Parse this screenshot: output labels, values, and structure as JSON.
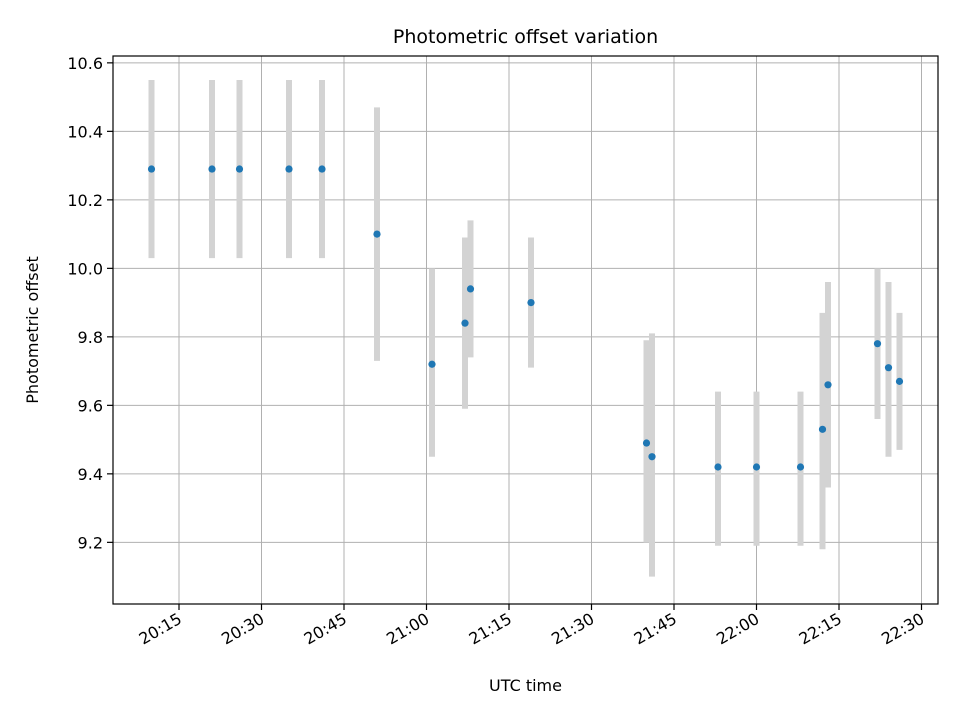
{
  "chart_data": {
    "type": "scatter",
    "title": "Photometric offset variation",
    "xlabel": "UTC time",
    "ylabel": "Photometric offset",
    "xlim": [
      "20:03",
      "22:33"
    ],
    "ylim": [
      9.02,
      10.62
    ],
    "x_ticks": [
      "20:15",
      "20:30",
      "20:45",
      "21:00",
      "21:15",
      "21:30",
      "21:45",
      "22:00",
      "22:15",
      "22:30"
    ],
    "y_ticks": [
      9.2,
      9.4,
      9.6,
      9.8,
      10.0,
      10.2,
      10.4,
      10.6
    ],
    "grid": true,
    "colors": {
      "point": "#1f77b4",
      "errorbar": "#d3d3d3",
      "grid": "#b0b0b0"
    },
    "points": [
      {
        "x": "20:10",
        "y": 10.29,
        "low": 10.03,
        "high": 10.55
      },
      {
        "x": "20:21",
        "y": 10.29,
        "low": 10.03,
        "high": 10.55
      },
      {
        "x": "20:26",
        "y": 10.29,
        "low": 10.03,
        "high": 10.55
      },
      {
        "x": "20:35",
        "y": 10.29,
        "low": 10.03,
        "high": 10.55
      },
      {
        "x": "20:41",
        "y": 10.29,
        "low": 10.03,
        "high": 10.55
      },
      {
        "x": "20:51",
        "y": 10.1,
        "low": 9.73,
        "high": 10.47
      },
      {
        "x": "21:01",
        "y": 9.72,
        "low": 9.45,
        "high": 10.0
      },
      {
        "x": "21:07",
        "y": 9.84,
        "low": 9.59,
        "high": 10.09
      },
      {
        "x": "21:08",
        "y": 9.94,
        "low": 9.74,
        "high": 10.14
      },
      {
        "x": "21:19",
        "y": 9.9,
        "low": 9.71,
        "high": 10.09
      },
      {
        "x": "21:40",
        "y": 9.49,
        "low": 9.2,
        "high": 9.79
      },
      {
        "x": "21:41",
        "y": 9.45,
        "low": 9.1,
        "high": 9.81
      },
      {
        "x": "21:53",
        "y": 9.42,
        "low": 9.19,
        "high": 9.64
      },
      {
        "x": "22:00",
        "y": 9.42,
        "low": 9.19,
        "high": 9.64
      },
      {
        "x": "22:08",
        "y": 9.42,
        "low": 9.19,
        "high": 9.64
      },
      {
        "x": "22:12",
        "y": 9.53,
        "low": 9.18,
        "high": 9.87
      },
      {
        "x": "22:13",
        "y": 9.66,
        "low": 9.36,
        "high": 9.96
      },
      {
        "x": "22:22",
        "y": 9.78,
        "low": 9.56,
        "high": 10.0
      },
      {
        "x": "22:24",
        "y": 9.71,
        "low": 9.45,
        "high": 9.96
      },
      {
        "x": "22:26",
        "y": 9.67,
        "low": 9.47,
        "high": 9.87
      }
    ]
  }
}
